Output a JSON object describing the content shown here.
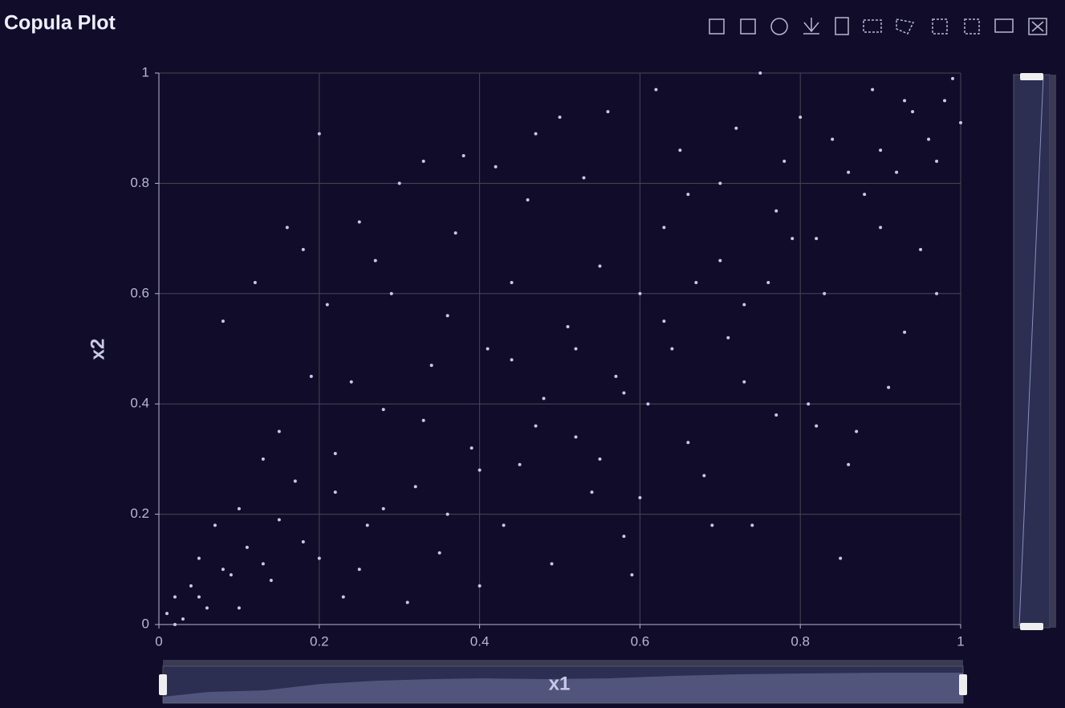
{
  "chart_data": {
    "type": "scatter",
    "title": "Copula Plot",
    "x_label": "x1",
    "y_label": "x2",
    "color": "#c9c8e8",
    "x": [
      0.01,
      0.02,
      0.03,
      0.04,
      0.05,
      0.06,
      0.07,
      0.08,
      0.09,
      0.1,
      0.11,
      0.12,
      0.13,
      0.14,
      0.15,
      0.16,
      0.17,
      0.18,
      0.19,
      0.2,
      0.2,
      0.21,
      0.22,
      0.23,
      0.24,
      0.25,
      0.26,
      0.27,
      0.28,
      0.29,
      0.3,
      0.31,
      0.32,
      0.33,
      0.34,
      0.35,
      0.36,
      0.37,
      0.38,
      0.39,
      0.4,
      0.41,
      0.42,
      0.43,
      0.44,
      0.45,
      0.46,
      0.47,
      0.48,
      0.49,
      0.5,
      0.51,
      0.52,
      0.53,
      0.54,
      0.55,
      0.56,
      0.57,
      0.58,
      0.59,
      0.6,
      0.6,
      0.61,
      0.62,
      0.63,
      0.64,
      0.65,
      0.66,
      0.67,
      0.68,
      0.69,
      0.7,
      0.71,
      0.72,
      0.73,
      0.74,
      0.75,
      0.76,
      0.77,
      0.78,
      0.79,
      0.8,
      0.81,
      0.82,
      0.83,
      0.84,
      0.85,
      0.86,
      0.87,
      0.88,
      0.89,
      0.9,
      0.91,
      0.92,
      0.93,
      0.94,
      0.95,
      0.96,
      0.97,
      0.98,
      0.99,
      1.0,
      0.02,
      0.05,
      0.08,
      0.1,
      0.13,
      0.15,
      0.18,
      0.22,
      0.25,
      0.28,
      0.33,
      0.36,
      0.4,
      0.44,
      0.47,
      0.52,
      0.55,
      0.58,
      0.63,
      0.66,
      0.7,
      0.73,
      0.77,
      0.82,
      0.86,
      0.9,
      0.93,
      0.97
    ],
    "values": [
      0.02,
      0.05,
      0.01,
      0.07,
      0.12,
      0.03,
      0.18,
      0.55,
      0.09,
      0.21,
      0.14,
      0.62,
      0.3,
      0.08,
      0.35,
      0.72,
      0.26,
      0.68,
      0.45,
      0.89,
      0.12,
      0.58,
      0.24,
      0.05,
      0.44,
      0.73,
      0.18,
      0.66,
      0.39,
      0.6,
      0.8,
      0.04,
      0.25,
      0.84,
      0.47,
      0.13,
      0.56,
      0.71,
      0.85,
      0.32,
      0.07,
      0.5,
      0.83,
      0.18,
      0.62,
      0.29,
      0.77,
      0.89,
      0.41,
      0.11,
      0.92,
      0.54,
      0.34,
      0.81,
      0.24,
      0.65,
      0.93,
      0.45,
      0.16,
      0.09,
      0.23,
      0.6,
      0.4,
      0.97,
      0.72,
      0.5,
      0.86,
      0.33,
      0.62,
      0.27,
      0.18,
      0.8,
      0.52,
      0.9,
      0.44,
      0.18,
      1.0,
      0.62,
      0.38,
      0.84,
      0.7,
      0.92,
      0.4,
      0.36,
      0.6,
      0.88,
      0.12,
      0.29,
      0.35,
      0.78,
      0.97,
      0.72,
      0.43,
      0.82,
      0.53,
      0.93,
      0.68,
      0.88,
      0.6,
      0.95,
      0.99,
      0.91,
      0.0,
      0.05,
      0.1,
      0.03,
      0.11,
      0.19,
      0.15,
      0.31,
      0.1,
      0.21,
      0.37,
      0.2,
      0.28,
      0.48,
      0.36,
      0.5,
      0.3,
      0.42,
      0.55,
      0.78,
      0.66,
      0.58,
      0.75,
      0.7,
      0.82,
      0.86,
      0.95,
      0.84
    ],
    "xlim": [
      0,
      1
    ],
    "ylim": [
      0,
      1
    ],
    "xticks": [
      0,
      0.2,
      0.4,
      0.6,
      0.8,
      1
    ],
    "yticks": [
      0,
      0.2,
      0.4,
      0.6,
      0.8,
      1
    ],
    "grid": true
  }
}
